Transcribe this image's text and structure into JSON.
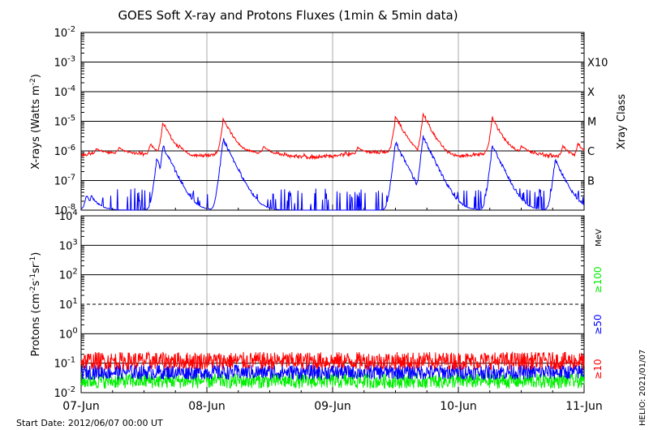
{
  "title": "GOES Soft X-ray and Protons Fluxes   (1min & 5min data)",
  "footer": {
    "start_date": "Start Date: 2012/06/07 00:00 UT",
    "credit": "HELIO: 2021/01/07"
  },
  "colors": {
    "xray_long": "#ff0000",
    "xray_short": "#0000ff",
    "p10": "#ff0000",
    "p50": "#0000ff",
    "p100": "#00ee00",
    "axis": "#000000",
    "gridline": "#aaaaaa"
  },
  "chart_data": [
    {
      "type": "line",
      "panel": "xray",
      "ylabel": "X-rays (Watts m^-2)",
      "yscale": "log",
      "ylim": [
        1e-08,
        0.01
      ],
      "y_tick_exponents": [
        -8,
        -7,
        -6,
        -5,
        -4,
        -3,
        -2
      ],
      "right_label": "Xray Class",
      "class_labels": [
        {
          "label": "B",
          "flux": 1e-07
        },
        {
          "label": "C",
          "flux": 1e-06
        },
        {
          "label": "M",
          "flux": 1e-05
        },
        {
          "label": "X",
          "flux": 0.0001
        },
        {
          "label": "X10",
          "flux": 0.001
        }
      ],
      "x_ticks": [
        "07-Jun",
        "08-Jun",
        "09-Jun",
        "10-Jun",
        "11-Jun"
      ],
      "xlim_days": [
        0,
        4
      ],
      "grid": "horizontal at decades, vertical at day boundaries",
      "series": [
        {
          "color_key": "xray_long",
          "baseline": 8e-07,
          "peaks": [
            [
              0.12,
              1.2e-06
            ],
            [
              0.3,
              1.3e-06
            ],
            [
              0.55,
              1.7e-06
            ],
            [
              0.65,
              9e-06
            ],
            [
              0.78,
              1.6e-06
            ],
            [
              1.13,
              1.2e-05
            ],
            [
              1.45,
              1.4e-06
            ],
            [
              2.2,
              1.3e-06
            ],
            [
              2.5,
              1.5e-05
            ],
            [
              2.72,
              1.8e-05
            ],
            [
              3.27,
              1.3e-05
            ],
            [
              3.5,
              1.5e-06
            ],
            [
              3.83,
              1.5e-06
            ],
            [
              3.95,
              1.8e-06
            ]
          ]
        },
        {
          "color_key": "xray_short",
          "baseline": 1e-08,
          "peaks": [
            [
              0.04,
              3e-08
            ],
            [
              0.08,
              3e-08
            ],
            [
              0.6,
              5e-07
            ],
            [
              0.65,
              1.5e-06
            ],
            [
              1.13,
              2.5e-06
            ],
            [
              1.3,
              1e-07
            ],
            [
              2.5,
              2e-06
            ],
            [
              2.72,
              3e-06
            ],
            [
              2.85,
              1.8e-07
            ],
            [
              3.27,
              1.5e-06
            ],
            [
              3.35,
              2e-08
            ],
            [
              3.77,
              5e-07
            ],
            [
              3.83,
              1.4e-07
            ]
          ]
        }
      ]
    },
    {
      "type": "line",
      "panel": "protons",
      "ylabel": "Protons (cm^-2 s^-1 sr^-1)",
      "yscale": "log",
      "ylim": [
        0.01,
        10000.0
      ],
      "y_tick_exponents": [
        -2,
        -1,
        0,
        1,
        2,
        3,
        4
      ],
      "y_tick_labels": [
        "10^-2",
        "10^-1",
        "10^0",
        "10^1",
        "10^2",
        "10^3",
        "10^4"
      ],
      "dashed_threshold": 10,
      "unit_label": "MeV",
      "x_ticks": [
        "07-Jun",
        "08-Jun",
        "09-Jun",
        "10-Jun",
        "11-Jun"
      ],
      "xlim_days": [
        0,
        4
      ],
      "series": [
        {
          "name": "≥100",
          "color_key": "p100",
          "level": 0.025
        },
        {
          "name": "≥50",
          "color_key": "p50",
          "level": 0.05
        },
        {
          "name": "≥10",
          "color_key": "p10",
          "level": 0.12
        }
      ]
    }
  ]
}
